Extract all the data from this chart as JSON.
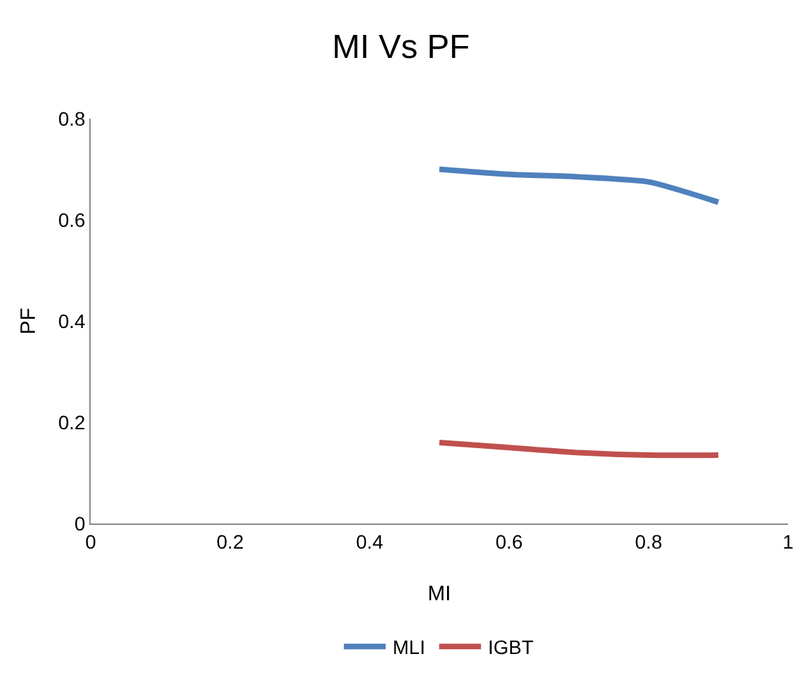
{
  "chart_data": {
    "type": "line",
    "title": "MI Vs PF",
    "xlabel": "MI",
    "ylabel": "PF",
    "x": [
      0.5,
      0.6,
      0.7,
      0.8,
      0.9
    ],
    "series": [
      {
        "name": "MLI",
        "color": "#4f81bd",
        "values": [
          0.7,
          0.69,
          0.685,
          0.675,
          0.635
        ]
      },
      {
        "name": "IGBT",
        "color": "#c0504d",
        "values": [
          0.16,
          0.15,
          0.14,
          0.135,
          0.135
        ]
      }
    ],
    "xlim": [
      0,
      1
    ],
    "xticks": [
      0,
      0.2,
      0.4,
      0.6,
      0.8,
      1
    ],
    "ylim": [
      0,
      0.8
    ],
    "yticks": [
      0,
      0.2,
      0.4,
      0.6,
      0.8
    ],
    "grid": false,
    "legend": "bottom",
    "marker": "none",
    "line_style": "solid"
  }
}
